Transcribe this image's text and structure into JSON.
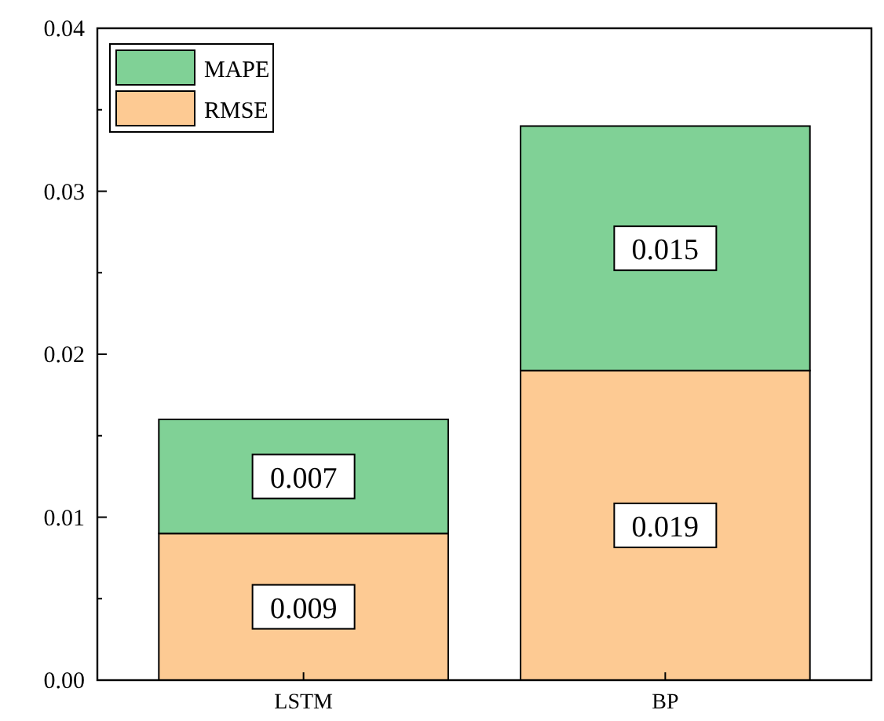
{
  "chart_data": {
    "type": "bar",
    "stacked": true,
    "categories": [
      "LSTM",
      "BP"
    ],
    "series": [
      {
        "name": "RMSE",
        "color": "#fdca93",
        "values": [
          0.009,
          0.019
        ]
      },
      {
        "name": "MAPE",
        "color": "#80d196",
        "values": [
          0.007,
          0.015
        ]
      }
    ],
    "ylim": [
      0,
      0.04
    ],
    "yticks": [
      {
        "value": 0,
        "label": "0.00"
      },
      {
        "value": 0.01,
        "label": "0.01"
      },
      {
        "value": 0.02,
        "label": "0.02"
      },
      {
        "value": 0.03,
        "label": "0.03"
      },
      {
        "value": 0.04,
        "label": "0.04"
      }
    ],
    "data_labels": true,
    "legend": "top left",
    "grid": false
  }
}
